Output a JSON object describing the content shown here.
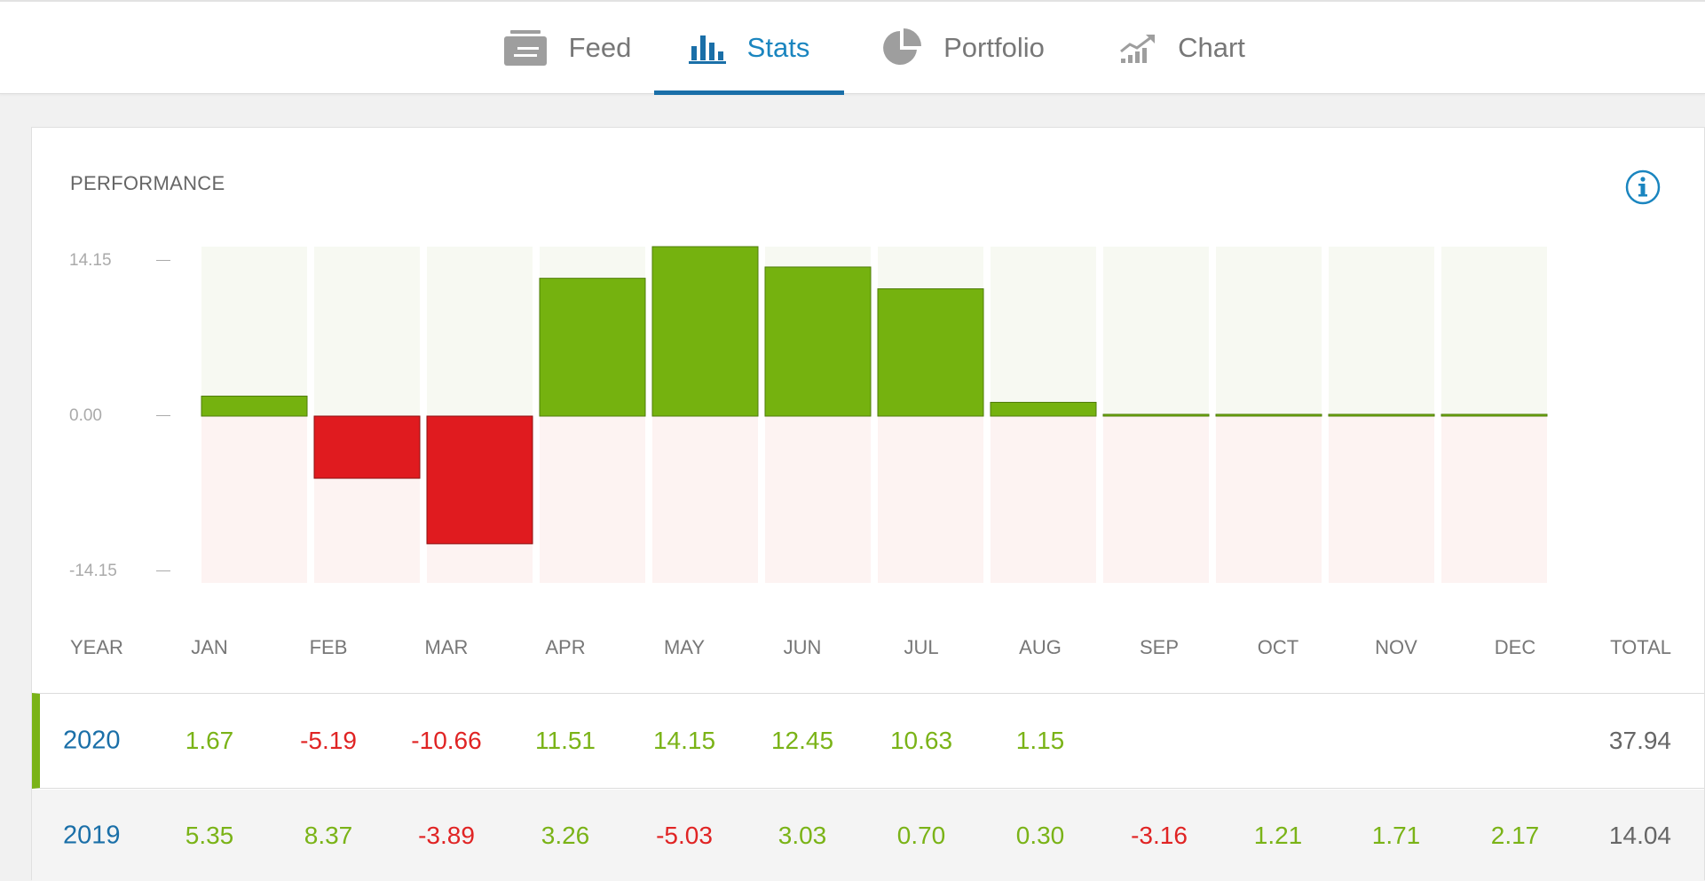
{
  "tabs": [
    {
      "label": "Feed",
      "icon": "feed-icon",
      "active": false
    },
    {
      "label": "Stats",
      "icon": "bar-chart-icon",
      "active": true
    },
    {
      "label": "Portfolio",
      "icon": "pie-chart-icon",
      "active": false
    },
    {
      "label": "Chart",
      "icon": "line-chart-icon",
      "active": false
    }
  ],
  "performance": {
    "title": "PERFORMANCE",
    "info_icon": "info-icon",
    "y_ticks": [
      "14.15",
      "0.00",
      "-14.15"
    ],
    "headers": {
      "year": "YEAR",
      "months": [
        "JAN",
        "FEB",
        "MAR",
        "APR",
        "MAY",
        "JUN",
        "JUL",
        "AUG",
        "SEP",
        "OCT",
        "NOV",
        "DEC"
      ],
      "total": "TOTAL"
    },
    "rows": [
      {
        "year": "2020",
        "values": [
          "1.67",
          "-5.19",
          "-10.66",
          "11.51",
          "14.15",
          "12.45",
          "10.63",
          "1.15",
          "",
          "",
          "",
          ""
        ],
        "total": "37.94"
      },
      {
        "year": "2019",
        "values": [
          "5.35",
          "8.37",
          "-3.89",
          "3.26",
          "-5.03",
          "3.03",
          "0.70",
          "0.30",
          "-3.16",
          "1.21",
          "1.71",
          "2.17"
        ],
        "total": "14.04"
      }
    ]
  },
  "chart_data": {
    "type": "bar",
    "categories": [
      "JAN",
      "FEB",
      "MAR",
      "APR",
      "MAY",
      "JUN",
      "JUL",
      "AUG",
      "SEP",
      "OCT",
      "NOV",
      "DEC"
    ],
    "series": [
      {
        "values": [
          1.67,
          -5.19,
          -10.66,
          11.51,
          14.15,
          12.45,
          10.63,
          1.15,
          0,
          0,
          0,
          0
        ]
      }
    ],
    "ylim": [
      -14.15,
      14.15
    ],
    "y_ticks": [
      14.15,
      0.0,
      -14.15
    ],
    "title": "PERFORMANCE",
    "grid": false,
    "colors": {
      "positive": "#75b20f",
      "negative": "#e01b1f",
      "positive_bg": "#f7f9f2",
      "negative_bg": "#fdf3f2"
    }
  },
  "colors": {
    "accent": "#1a6fa8",
    "positive": "#7ab317",
    "negative": "#e02424"
  }
}
